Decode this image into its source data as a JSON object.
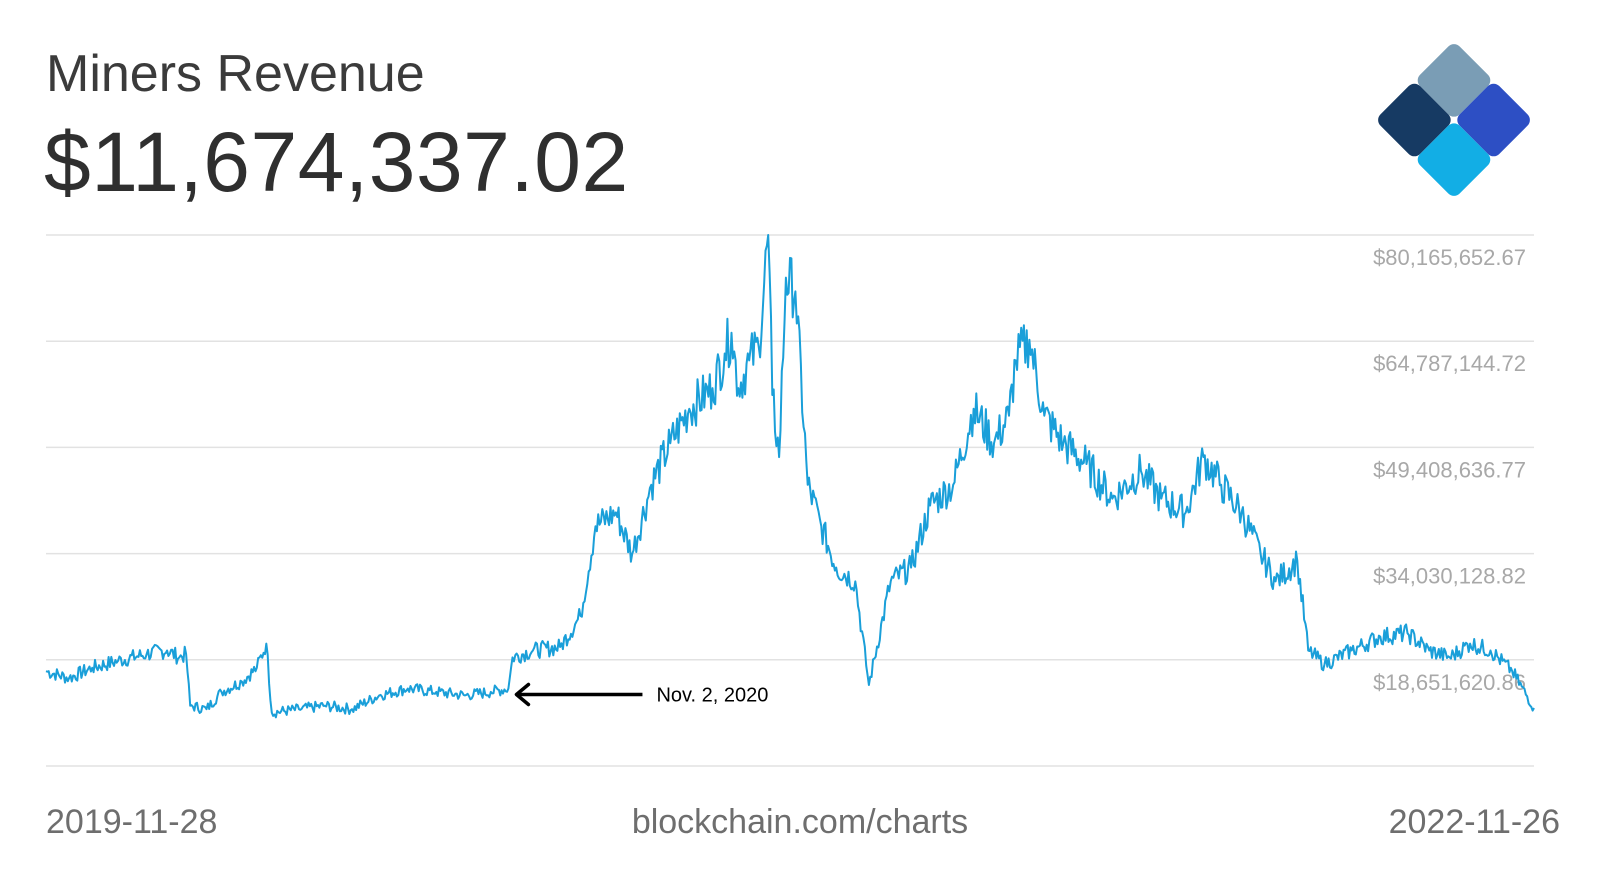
{
  "header": {
    "title": "Miners Revenue",
    "current_value": "$11,674,337.02"
  },
  "footer": {
    "start_date": "2019-11-28",
    "source": "blockchain.com/charts",
    "end_date": "2022-11-26"
  },
  "logo": {
    "icon": "blockchain-diamond-logo",
    "colors": [
      "#7a9db5",
      "#163a63",
      "#2d4fc4",
      "#b6d9ea",
      "#12aee5"
    ]
  },
  "colors": {
    "line": "#1a9fd9",
    "grid": "#e2e2e2",
    "tick_text": "#a8a8a8",
    "annotation": "#000000"
  },
  "chart_data": {
    "type": "line",
    "title": "Miners Revenue",
    "x_start": "2019-11-28",
    "x_end": "2022-11-26",
    "ylim": [
      3273112.91,
      80165652.67
    ],
    "y_ticks": [
      {
        "value": 80165652.67,
        "label": "$80,165,652.67"
      },
      {
        "value": 64787144.72,
        "label": "$64,787,144.72"
      },
      {
        "value": 49408636.77,
        "label": "$49,408,636.77"
      },
      {
        "value": 34030128.82,
        "label": "$34,030,128.82"
      },
      {
        "value": 18651620.86,
        "label": "$18,651,620.86"
      }
    ],
    "grid": true,
    "series": [
      {
        "points": [
          [
            "2019-11-28",
            17000000
          ],
          [
            "2019-12-15",
            16000000
          ],
          [
            "2020-01-01",
            17500000
          ],
          [
            "2020-01-20",
            18500000
          ],
          [
            "2020-02-10",
            19500000
          ],
          [
            "2020-02-25",
            20000000
          ],
          [
            "2020-03-05",
            19000000
          ],
          [
            "2020-03-10",
            19500000
          ],
          [
            "2020-03-13",
            12000000
          ],
          [
            "2020-03-25",
            11500000
          ],
          [
            "2020-04-05",
            14000000
          ],
          [
            "2020-04-20",
            15500000
          ],
          [
            "2020-05-01",
            17500000
          ],
          [
            "2020-05-08",
            21000000
          ],
          [
            "2020-05-12",
            11000000
          ],
          [
            "2020-06-01",
            11500000
          ],
          [
            "2020-06-20",
            12000000
          ],
          [
            "2020-07-10",
            11500000
          ],
          [
            "2020-07-30",
            13500000
          ],
          [
            "2020-08-20",
            14500000
          ],
          [
            "2020-09-10",
            14000000
          ],
          [
            "2020-10-01",
            13500000
          ],
          [
            "2020-10-20",
            14000000
          ],
          [
            "2020-11-02",
            14500000
          ],
          [
            "2020-11-05",
            19000000
          ],
          [
            "2020-11-20",
            20000000
          ],
          [
            "2020-12-10",
            20500000
          ],
          [
            "2020-12-25",
            25000000
          ],
          [
            "2021-01-05",
            38000000
          ],
          [
            "2021-01-20",
            40000000
          ],
          [
            "2021-02-01",
            34000000
          ],
          [
            "2021-02-15",
            44000000
          ],
          [
            "2021-03-01",
            50000000
          ],
          [
            "2021-03-15",
            55000000
          ],
          [
            "2021-04-01",
            58000000
          ],
          [
            "2021-04-10",
            63000000
          ],
          [
            "2021-04-15",
            66000000
          ],
          [
            "2021-04-20",
            58000000
          ],
          [
            "2021-04-28",
            62000000
          ],
          [
            "2021-05-05",
            64000000
          ],
          [
            "2021-05-12",
            80165652
          ],
          [
            "2021-05-15",
            57000000
          ],
          [
            "2021-05-20",
            48000000
          ],
          [
            "2021-05-25",
            74000000
          ],
          [
            "2021-06-01",
            72000000
          ],
          [
            "2021-06-10",
            44000000
          ],
          [
            "2021-06-20",
            38000000
          ],
          [
            "2021-07-01",
            32000000
          ],
          [
            "2021-07-15",
            30000000
          ],
          [
            "2021-07-25",
            15000000
          ],
          [
            "2021-08-10",
            30000000
          ],
          [
            "2021-08-25",
            32000000
          ],
          [
            "2021-09-08",
            41000000
          ],
          [
            "2021-09-25",
            44000000
          ],
          [
            "2021-10-10",
            55000000
          ],
          [
            "2021-10-25",
            50000000
          ],
          [
            "2021-11-05",
            54000000
          ],
          [
            "2021-11-10",
            62000000
          ],
          [
            "2021-11-20",
            65000000
          ],
          [
            "2021-12-01",
            54000000
          ],
          [
            "2021-12-15",
            50000000
          ],
          [
            "2022-01-01",
            47000000
          ],
          [
            "2022-01-20",
            42000000
          ],
          [
            "2022-02-10",
            46000000
          ],
          [
            "2022-02-25",
            42000000
          ],
          [
            "2022-03-15",
            40000000
          ],
          [
            "2022-03-28",
            48000000
          ],
          [
            "2022-04-10",
            44000000
          ],
          [
            "2022-04-25",
            40000000
          ],
          [
            "2022-05-09",
            34000000
          ],
          [
            "2022-05-20",
            30000000
          ],
          [
            "2022-06-05",
            33000000
          ],
          [
            "2022-06-13",
            20000000
          ],
          [
            "2022-06-25",
            18000000
          ],
          [
            "2022-07-15",
            20000000
          ],
          [
            "2022-08-05",
            22000000
          ],
          [
            "2022-08-25",
            22500000
          ],
          [
            "2022-09-10",
            20000000
          ],
          [
            "2022-09-25",
            19000000
          ],
          [
            "2022-10-10",
            21000000
          ],
          [
            "2022-10-25",
            20000000
          ],
          [
            "2022-11-10",
            17000000
          ],
          [
            "2022-11-26",
            11674337
          ]
        ]
      }
    ],
    "annotations": [
      {
        "date": "2020-11-02",
        "value": 14500000,
        "text": "Nov. 2, 2020",
        "type": "arrow"
      }
    ]
  }
}
